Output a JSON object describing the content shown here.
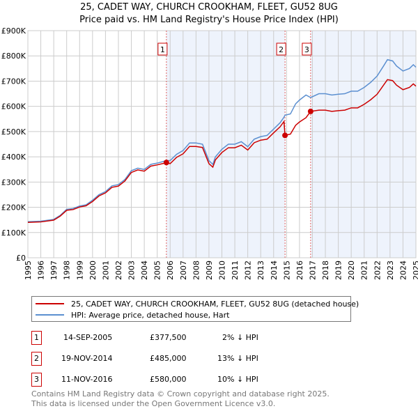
{
  "title": "25, CADET WAY, CHURCH CROOKHAM, FLEET, GU52 8UG",
  "subtitle": "Price paid vs. HM Land Registry's House Price Index (HPI)",
  "chart_data": {
    "type": "line",
    "ylim": [
      0,
      900000
    ],
    "xlim": [
      1995,
      2025
    ],
    "yticks": [
      0,
      100000,
      200000,
      300000,
      400000,
      500000,
      600000,
      700000,
      800000,
      900000
    ],
    "ytick_labels": [
      "£0",
      "£100K",
      "£200K",
      "£300K",
      "£400K",
      "£500K",
      "£600K",
      "£700K",
      "£800K",
      "£900K"
    ],
    "xticks": [
      "1995",
      "1996",
      "1997",
      "1998",
      "1999",
      "2000",
      "2001",
      "2002",
      "2003",
      "2004",
      "2005",
      "2006",
      "2007",
      "2008",
      "2009",
      "2010",
      "2011",
      "2012",
      "2013",
      "2014",
      "2015",
      "2016",
      "2017",
      "2018",
      "2019",
      "2020",
      "2021",
      "2022",
      "2023",
      "2024",
      "2025"
    ],
    "grid": true,
    "x": [
      1995,
      1996,
      1997,
      1997.5,
      1998,
      1998.5,
      1999,
      1999.5,
      2000,
      2000.5,
      2001,
      2001.5,
      2002,
      2002.5,
      2003,
      2003.5,
      2004,
      2004.5,
      2005,
      2005.5,
      2005.7,
      2006,
      2006.5,
      2007,
      2007.5,
      2008,
      2008.5,
      2009,
      2009.3,
      2009.5,
      2010,
      2010.5,
      2011,
      2011.5,
      2012,
      2012.5,
      2013,
      2013.5,
      2014,
      2014.5,
      2014.8,
      2014.88,
      2015.3,
      2015.7,
      2016,
      2016.5,
      2016.86,
      2017.5,
      2018,
      2018.5,
      2019,
      2019.5,
      2020,
      2020.5,
      2021,
      2021.5,
      2022,
      2022.5,
      2022.8,
      2023.2,
      2023.5,
      2024,
      2024.5,
      2024.8,
      2025
    ],
    "series": [
      {
        "name": "25, CADET WAY, CHURCH CROOKHAM, FLEET, GU52 8UG (detached house)",
        "color": "#cc0000",
        "values": [
          140000,
          142000,
          149000,
          165000,
          188000,
          191000,
          201000,
          206000,
          223000,
          245000,
          257000,
          279000,
          284000,
          304000,
          338000,
          348000,
          343000,
          363000,
          368000,
          374000,
          377500,
          373000,
          398000,
          412000,
          441000,
          441000,
          437000,
          373000,
          359000,
          388000,
          417000,
          436000,
          436000,
          446000,
          427000,
          456000,
          466000,
          470000,
          495000,
          519000,
          540000,
          485000,
          490000,
          525000,
          538000,
          555000,
          580000,
          585000,
          585000,
          580000,
          583000,
          585000,
          594000,
          594000,
          608000,
          626000,
          648000,
          684000,
          706000,
          702000,
          684000,
          666000,
          675000,
          689000,
          680000
        ]
      },
      {
        "name": "HPI: Average price, detached house, Hart",
        "color": "#5b8fd0",
        "values": [
          143000,
          145000,
          152000,
          168000,
          192000,
          195000,
          205000,
          210000,
          228000,
          250000,
          262000,
          285000,
          290000,
          310000,
          345000,
          355000,
          350000,
          370000,
          375000,
          382000,
          385000,
          385000,
          410000,
          425000,
          455000,
          455000,
          450000,
          385000,
          370000,
          400000,
          430000,
          450000,
          450000,
          460000,
          440000,
          470000,
          480000,
          485000,
          510000,
          535000,
          557000,
          565000,
          570000,
          610000,
          625000,
          645000,
          635000,
          650000,
          650000,
          645000,
          648000,
          650000,
          660000,
          660000,
          675000,
          695000,
          720000,
          760000,
          785000,
          780000,
          760000,
          740000,
          750000,
          765000,
          755000
        ]
      }
    ],
    "sales": [
      {
        "label": "1",
        "date": "14-SEP-2005",
        "x": 2005.71,
        "price": "£377,500",
        "value": 377500,
        "hpi": "2% ↓ HPI"
      },
      {
        "label": "2",
        "date": "19-NOV-2014",
        "x": 2014.88,
        "price": "£485,000",
        "value": 485000,
        "hpi": "13% ↓ HPI"
      },
      {
        "label": "3",
        "date": "11-NOV-2016",
        "x": 2016.86,
        "price": "£580,000",
        "value": 580000,
        "hpi": "10% ↓ HPI"
      }
    ],
    "shaded_ranges": [
      [
        2005.71,
        2014.88
      ],
      [
        2016.86,
        2025
      ]
    ],
    "shade_color": "#eef3fc"
  },
  "footer": [
    "Contains HM Land Registry data © Crown copyright and database right 2025.",
    "This data is licensed under the Open Government Licence v3.0."
  ]
}
